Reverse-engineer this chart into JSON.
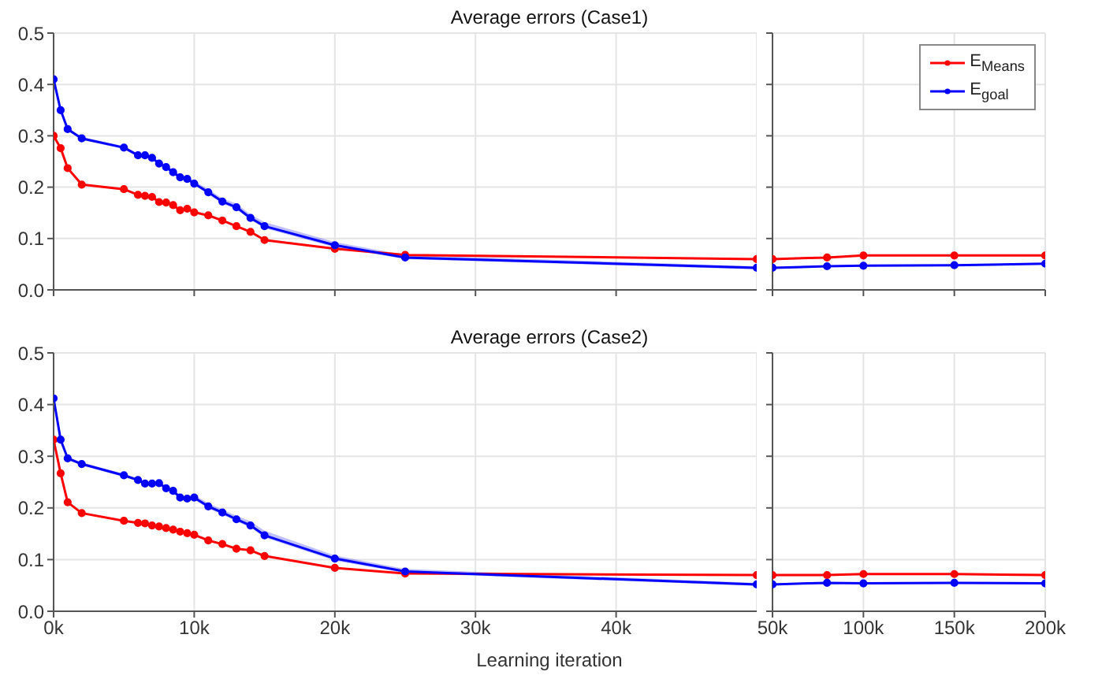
{
  "chart_data": [
    {
      "type": "line",
      "title": "Average errors (Case1)",
      "x": [
        0,
        500,
        1000,
        2000,
        5000,
        6000,
        6500,
        7000,
        7500,
        8000,
        8500,
        9000,
        9500,
        10000,
        11000,
        12000,
        13000,
        14000,
        15000,
        20000,
        25000,
        50000
      ],
      "xlim": [
        0,
        50000
      ],
      "xticks": [
        {
          "value": 0,
          "label": null
        },
        {
          "value": 10000,
          "label": null
        },
        {
          "value": 20000,
          "label": null
        },
        {
          "value": 30000,
          "label": null
        },
        {
          "value": 40000,
          "label": null
        }
      ],
      "ylim": [
        0,
        0.5
      ],
      "yticks": [
        {
          "value": 0,
          "label": "0.0"
        },
        0.1,
        0.2,
        0.3,
        0.4,
        0.5
      ],
      "tick_labels": "y",
      "grid": true,
      "legend": false,
      "marker": "circle",
      "line_style": "solid",
      "series": [
        {
          "color": "#ff0000",
          "values": [
            0.3,
            0.276,
            0.237,
            0.205,
            0.196,
            0.185,
            0.183,
            0.181,
            0.171,
            0.17,
            0.165,
            0.155,
            0.158,
            0.151,
            0.145,
            0.135,
            0.124,
            0.113,
            0.097,
            0.08,
            0.068,
            0.06
          ]
        },
        {
          "color": "#0000ff",
          "values": [
            0.41,
            0.35,
            0.313,
            0.295,
            0.277,
            0.262,
            0.262,
            0.257,
            0.246,
            0.239,
            0.229,
            0.219,
            0.216,
            0.207,
            0.19,
            0.172,
            0.161,
            0.14,
            0.124,
            0.087,
            0.063,
            0.043
          ],
          "lower": [
            0.41,
            0.347,
            0.31,
            0.292,
            0.274,
            0.259,
            0.259,
            0.254,
            0.243,
            0.236,
            0.226,
            0.216,
            0.213,
            0.204,
            0.186,
            0.168,
            0.157,
            0.136,
            0.12,
            0.083,
            0.06,
            0.04
          ],
          "upper": [
            0.41,
            0.353,
            0.316,
            0.298,
            0.28,
            0.265,
            0.265,
            0.26,
            0.249,
            0.242,
            0.233,
            0.223,
            0.22,
            0.212,
            0.196,
            0.178,
            0.168,
            0.147,
            0.132,
            0.093,
            0.068,
            0.046
          ]
        }
      ]
    },
    {
      "type": "line",
      "x": [
        50000,
        80000,
        100000,
        150000,
        200000
      ],
      "xlim": [
        50000,
        200000
      ],
      "xticks": [
        {
          "value": 50000,
          "label": null
        },
        {
          "value": 100000,
          "label": null
        },
        {
          "value": 150000,
          "label": null
        },
        {
          "value": 200000,
          "label": null
        }
      ],
      "ylim": [
        0,
        0.5
      ],
      "yticks": [
        {
          "value": 0,
          "label": null
        },
        {
          "value": 0.1,
          "label": null
        },
        {
          "value": 0.2,
          "label": null
        },
        {
          "value": 0.3,
          "label": null
        },
        {
          "value": 0.4,
          "label": null
        },
        {
          "value": 0.5,
          "label": null
        }
      ],
      "tick_labels": false,
      "grid": true,
      "legend": "top right",
      "marker": "circle",
      "line_style": "solid",
      "series": [
        {
          "name": "E$_{Means}$",
          "color": "#ff0000",
          "values": [
            0.06,
            0.063,
            0.067,
            0.067,
            0.067
          ]
        },
        {
          "name": "E$_{goal}$",
          "color": "#0000ff",
          "values": [
            0.043,
            0.046,
            0.047,
            0.048,
            0.051
          ]
        }
      ]
    },
    {
      "type": "line",
      "title": "Average errors (Case2)",
      "xlabel": "Learning iteration",
      "x": [
        0,
        500,
        1000,
        2000,
        5000,
        6000,
        6500,
        7000,
        7500,
        8000,
        8500,
        9000,
        9500,
        10000,
        11000,
        12000,
        13000,
        14000,
        15000,
        20000,
        25000,
        50000
      ],
      "xlim": [
        0,
        50000
      ],
      "xticks": [
        {
          "value": 0,
          "label": "0k"
        },
        {
          "value": 10000,
          "label": "10k"
        },
        {
          "value": 20000,
          "label": "20k"
        },
        {
          "value": 30000,
          "label": "30k"
        },
        {
          "value": 40000,
          "label": "40k"
        }
      ],
      "ylim": [
        0,
        0.5
      ],
      "yticks": [
        {
          "value": 0,
          "label": "0.0"
        },
        0.1,
        0.2,
        0.3,
        0.4,
        0.5
      ],
      "grid": true,
      "legend": false,
      "marker": "circle",
      "line_style": "solid",
      "series": [
        {
          "color": "#ff0000",
          "values": [
            0.332,
            0.267,
            0.211,
            0.19,
            0.175,
            0.171,
            0.17,
            0.166,
            0.164,
            0.161,
            0.158,
            0.154,
            0.151,
            0.148,
            0.137,
            0.13,
            0.121,
            0.118,
            0.107,
            0.084,
            0.073,
            0.07
          ]
        },
        {
          "color": "#0000ff",
          "values": [
            0.412,
            0.332,
            0.296,
            0.285,
            0.263,
            0.254,
            0.247,
            0.247,
            0.248,
            0.238,
            0.233,
            0.22,
            0.218,
            0.22,
            0.203,
            0.191,
            0.178,
            0.166,
            0.147,
            0.102,
            0.077,
            0.052
          ],
          "lower": [
            0.412,
            0.329,
            0.293,
            0.282,
            0.26,
            0.251,
            0.244,
            0.244,
            0.245,
            0.235,
            0.23,
            0.217,
            0.215,
            0.216,
            0.199,
            0.187,
            0.174,
            0.162,
            0.143,
            0.098,
            0.074,
            0.049
          ],
          "upper": [
            0.412,
            0.335,
            0.299,
            0.288,
            0.266,
            0.257,
            0.25,
            0.25,
            0.251,
            0.241,
            0.236,
            0.224,
            0.222,
            0.225,
            0.209,
            0.197,
            0.185,
            0.174,
            0.156,
            0.108,
            0.082,
            0.055
          ]
        }
      ]
    },
    {
      "type": "line",
      "x": [
        50000,
        80000,
        100000,
        150000,
        200000
      ],
      "xlim": [
        50000,
        200000
      ],
      "xticks": [
        {
          "value": 50000,
          "label": "50k"
        },
        {
          "value": 100000,
          "label": "100k"
        },
        {
          "value": 150000,
          "label": "150k"
        },
        {
          "value": 200000,
          "label": "200k"
        }
      ],
      "ylim": [
        0,
        0.5
      ],
      "yticks": [
        {
          "value": 0,
          "label": null
        },
        {
          "value": 0.1,
          "label": null
        },
        {
          "value": 0.2,
          "label": null
        },
        {
          "value": 0.3,
          "label": null
        },
        {
          "value": 0.4,
          "label": null
        },
        {
          "value": 0.5,
          "label": null
        }
      ],
      "tick_labels": "x",
      "grid": true,
      "legend": false,
      "marker": "circle",
      "line_style": "solid",
      "series": [
        {
          "color": "#ff0000",
          "values": [
            0.07,
            0.07,
            0.072,
            0.072,
            0.07
          ]
        },
        {
          "color": "#0000ff",
          "values": [
            0.052,
            0.055,
            0.054,
            0.055,
            0.054
          ]
        }
      ]
    }
  ]
}
